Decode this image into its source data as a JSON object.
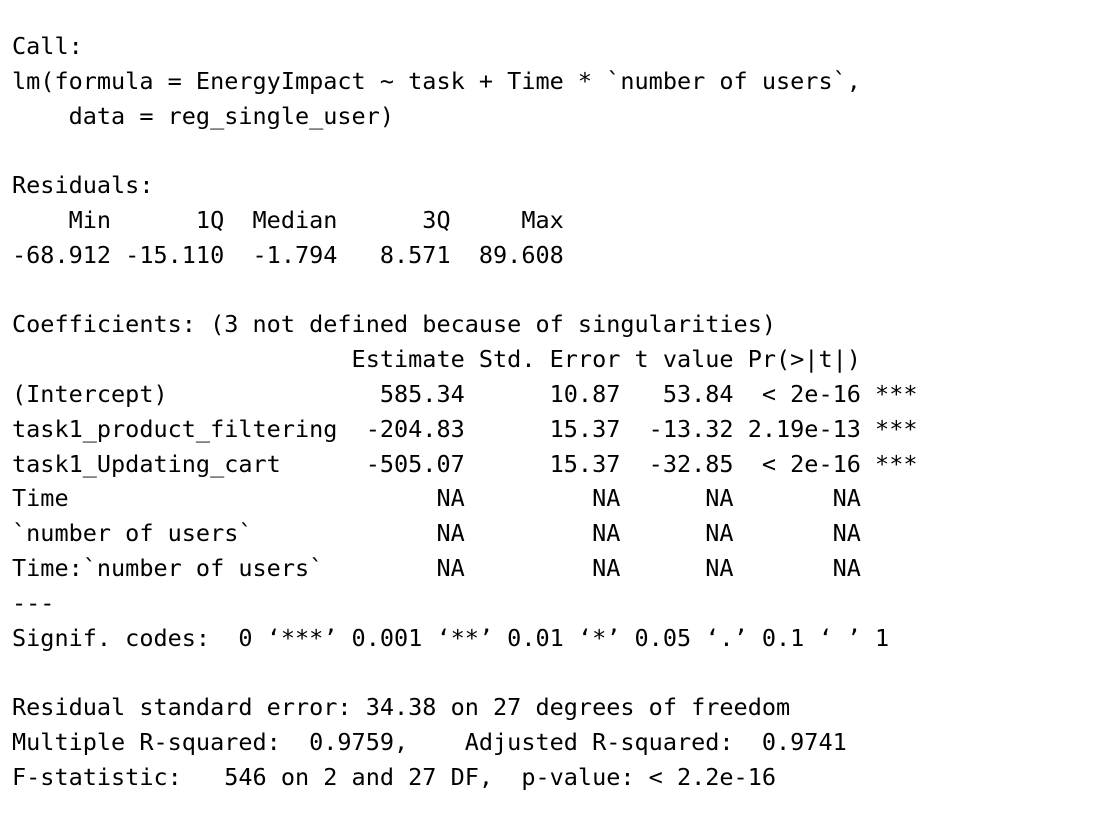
{
  "output": {
    "call_header": "Call:",
    "call_line1": "lm(formula = EnergyImpact ~ task + Time * `number of users`,",
    "call_line2": "    data = reg_single_user)",
    "residuals_header": "Residuals:",
    "residuals_labels": "    Min      1Q  Median      3Q     Max ",
    "residuals_values": "-68.912 -15.110  -1.794   8.571  89.608 ",
    "coef_header": "Coefficients: (3 not defined because of singularities)",
    "coef_columns": "                        Estimate Std. Error t value Pr(>|t|)    ",
    "coef_rows": [
      "(Intercept)               585.34      10.87   53.84  < 2e-16 ***",
      "task1_product_filtering  -204.83      15.37  -13.32 2.19e-13 ***",
      "task1_Updating_cart      -505.07      15.37  -32.85  < 2e-16 ***",
      "Time                          NA         NA      NA       NA    ",
      "`number of users`             NA         NA      NA       NA    ",
      "Time:`number of users`        NA         NA      NA       NA    "
    ],
    "separator": "---",
    "signif_codes": "Signif. codes:  0 ‘***’ 0.001 ‘**’ 0.01 ‘*’ 0.05 ‘.’ 0.1 ‘ ’ 1",
    "rse": "Residual standard error: 34.38 on 27 degrees of freedom",
    "r_squared": "Multiple R-squared:  0.9759,\tAdjusted R-squared:  0.9741 ",
    "f_statistic": "F-statistic:   546 on 2 and 27 DF,  p-value: < 2.2e-16"
  }
}
